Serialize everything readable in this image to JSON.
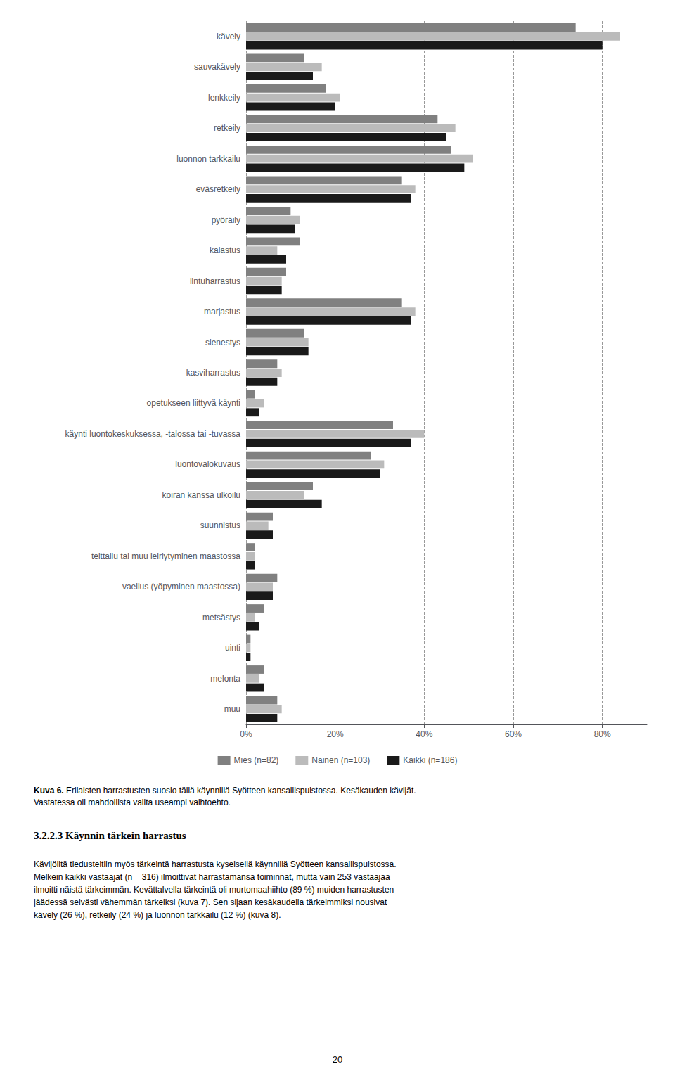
{
  "chart_data": {
    "type": "bar",
    "orientation": "horizontal",
    "categories": [
      "kävely",
      "sauvakävely",
      "lenkkeily",
      "retkeily",
      "luonnon tarkkailu",
      "eväsretkeily",
      "pyöräily",
      "kalastus",
      "lintuharrastus",
      "marjastus",
      "sienestys",
      "kasviharrastus",
      "opetukseen liittyvä käynti",
      "käynti luontokeskuksessa, -talossa tai -tuvassa",
      "luontovalokuvaus",
      "koiran kanssa ulkoilu",
      "suunnistus",
      "telttailu tai muu leiriytyminen maastossa",
      "vaellus (yöpyminen maastossa)",
      "metsästys",
      "uinti",
      "melonta",
      "muu"
    ],
    "series": [
      {
        "name": "Mies (n=82)",
        "color": "#808080",
        "values": [
          74,
          13,
          18,
          43,
          46,
          35,
          10,
          12,
          9,
          35,
          13,
          7,
          2,
          33,
          28,
          15,
          6,
          2,
          7,
          4,
          1,
          4,
          7
        ]
      },
      {
        "name": "Nainen (n=103)",
        "color": "#bbbbbb",
        "values": [
          84,
          17,
          21,
          47,
          51,
          38,
          12,
          7,
          8,
          38,
          14,
          8,
          4,
          40,
          31,
          13,
          5,
          2,
          6,
          2,
          1,
          3,
          8
        ]
      },
      {
        "name": "Kaikki (n=186)",
        "color": "#1a1a1a",
        "values": [
          80,
          15,
          20,
          45,
          49,
          37,
          11,
          9,
          8,
          37,
          14,
          7,
          3,
          37,
          30,
          17,
          6,
          2,
          6,
          3,
          1,
          4,
          7
        ]
      }
    ],
    "xlim": [
      0,
      90
    ],
    "xticks": [
      {
        "value": 0,
        "label": "0%"
      },
      {
        "value": 20,
        "label": "20%"
      },
      {
        "value": 40,
        "label": "40%"
      },
      {
        "value": 60,
        "label": "60%"
      },
      {
        "value": 80,
        "label": "80%"
      }
    ],
    "grid": true,
    "legend": "bottom",
    "annotations": [
      "Kuva 6.",
      " Erilaisten harrastusten suosio tällä käynnillä Syötteen kansallispuistossa. Kesäkauden kävijät.\nVastatessa oli mahdollista valita useampi vaihtoehto.",
      "3.2.2.3 Käynnin tärkein harrastus",
      "Kävijöiltä tiedusteltiin myös tärkeintä harrastusta kyseisellä käynnillä Syötteen kansallispuistossa.\nMelkein kaikki vastaajat (n = 316) ilmoittivat harrastamansa toiminnat, mutta vain 253 vastaajaa\nilmoitti näistä tärkeimmän. Kevättalvella tärkeintä oli murtomaahiihto (89 %) muiden harrastusten\njäädessä selvästi vähemmän tärkeiksi (kuva 7). Sen sijaan kesäkaudella tärkeimmiksi nousivat\nkävely (26 %), retkeily (24 %) ja luonnon tarkkailu (12 %) (kuva 8).",
      "20"
    ]
  }
}
